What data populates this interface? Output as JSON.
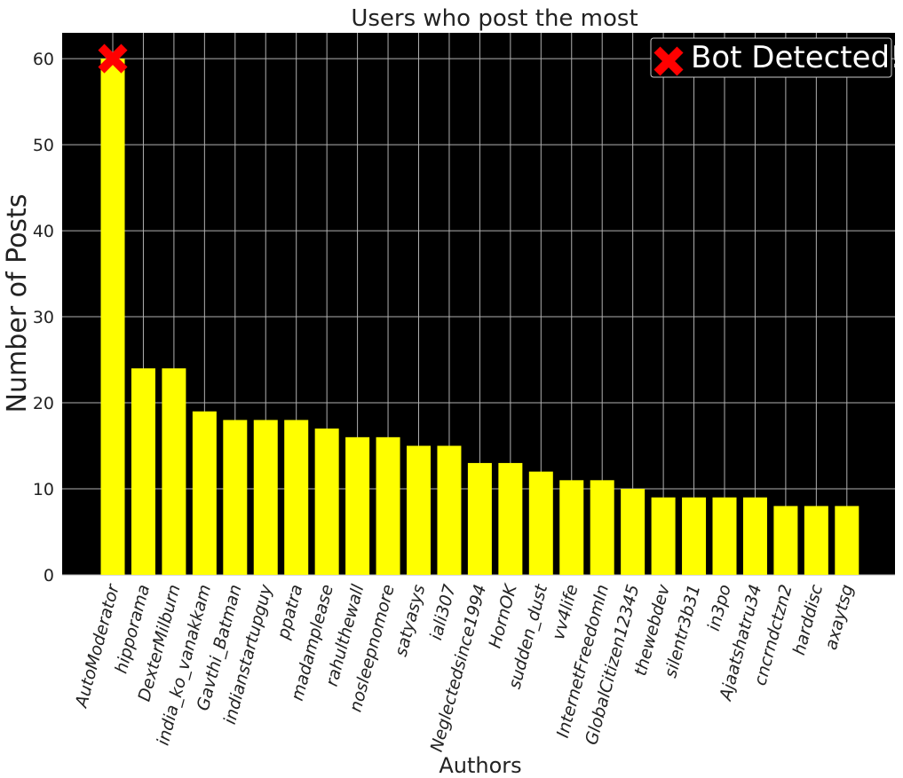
{
  "chart_data": {
    "type": "bar",
    "title": "Users who post the most",
    "xlabel": "Authors",
    "ylabel": "Number of Posts",
    "ylim": [
      0,
      63
    ],
    "yticks": [
      0,
      10,
      20,
      30,
      40,
      50,
      60
    ],
    "grid": true,
    "legend_position": "top-right",
    "colors": {
      "plot_bg": "#000000",
      "bar": "#ffff00",
      "grid": "#b0b0b0",
      "marker": "#ff0000"
    },
    "legend": {
      "label": "Bot Detected!",
      "marker": "x-marker-icon"
    },
    "annotation": {
      "category": "AutoModerator",
      "value": 60,
      "marker": "x-marker-icon"
    },
    "categories": [
      "AutoModerator",
      "hipporama",
      "DexterMilburn",
      "india_ko_vanakkam",
      "Gavthi_Batman",
      "indianstartupguy",
      "ppatra",
      "madamplease",
      "rahulthewall",
      "nosleepnomore",
      "satyasys",
      "iali307",
      "Neglectedsince1994",
      "HornOK",
      "sudden_dust",
      "vv4life",
      "InternetFreedomIn",
      "GlobalCitizen12345",
      "thewebdev",
      "silentr3b31",
      "in3po",
      "Ajaatshatru34",
      "cncrndctzn2",
      "harddisc",
      "axaytsg"
    ],
    "values": [
      60,
      24,
      24,
      19,
      18,
      18,
      18,
      17,
      16,
      16,
      15,
      15,
      13,
      13,
      12,
      11,
      11,
      10,
      9,
      9,
      9,
      9,
      8,
      8,
      8
    ]
  }
}
